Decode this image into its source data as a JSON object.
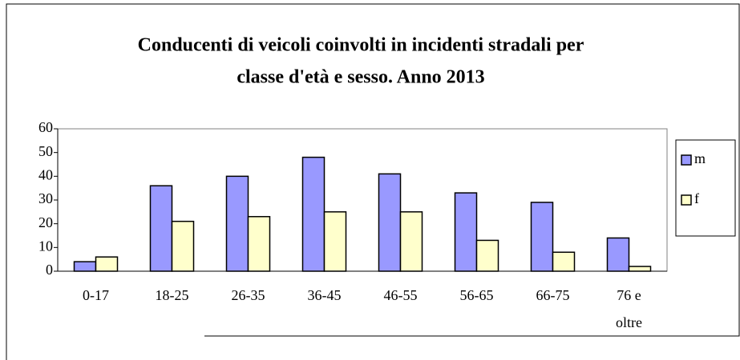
{
  "chart_data": {
    "type": "bar",
    "title": [
      "Conducenti di veicoli coinvolti in incidenti stradali per",
      "classe d'età e sesso. Anno 2013"
    ],
    "categories": [
      "0-17",
      "18-25",
      "26-35",
      "36-45",
      "46-55",
      "56-65",
      "66-75",
      "76 e oltre"
    ],
    "series": [
      {
        "name": "m",
        "color": "#9999ff",
        "values": [
          4,
          36,
          40,
          48,
          41,
          33,
          29,
          14
        ]
      },
      {
        "name": "f",
        "color": "#ffffcc",
        "values": [
          6,
          21,
          23,
          25,
          25,
          13,
          8,
          2
        ]
      }
    ],
    "ylim": [
      0,
      60
    ],
    "yticks": [
      0,
      10,
      20,
      30,
      40,
      50,
      60
    ],
    "grid": false,
    "legend": "right"
  }
}
